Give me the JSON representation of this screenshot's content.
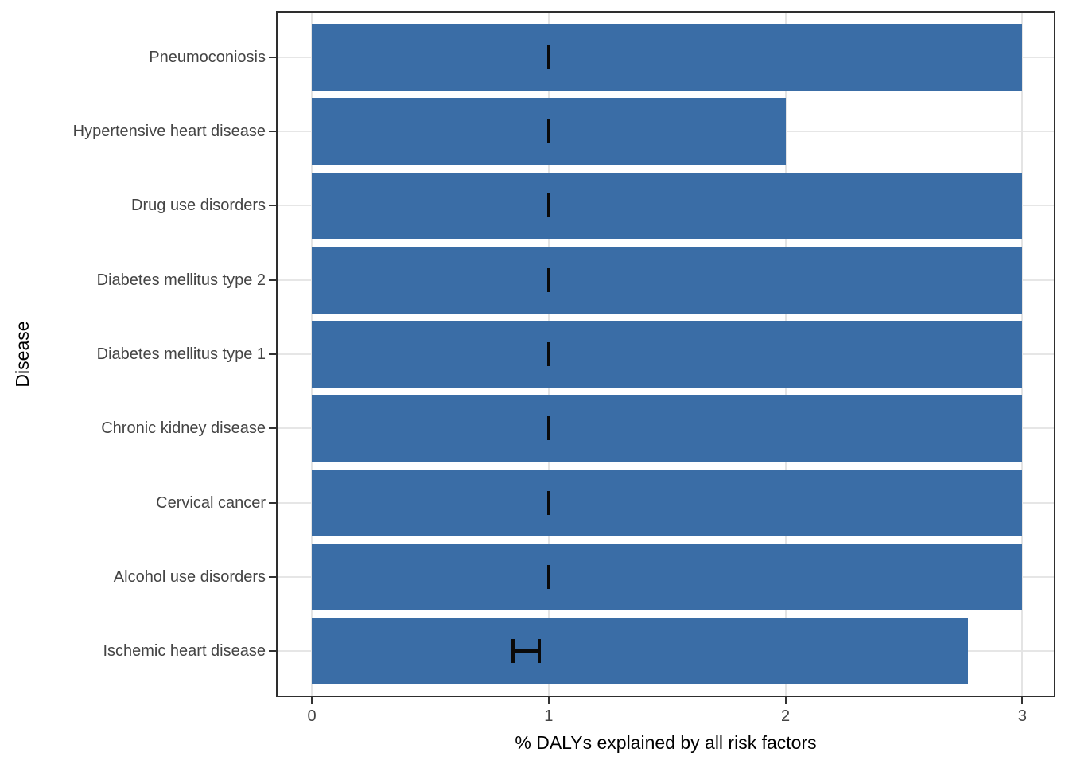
{
  "figure": {
    "background": "#FFFFFF"
  },
  "chart_data": {
    "type": "bar",
    "orientation": "horizontal",
    "title": "",
    "xlabel": "% DALYs explained by all risk factors",
    "ylabel": "Disease",
    "xlim": [
      0,
      3
    ],
    "x_major_ticks": [
      0,
      1,
      2,
      3
    ],
    "x_minor_gridlines": [
      0.5,
      1.5,
      2.5
    ],
    "grid": "major-x, minor-x, major-y; light gray on white",
    "legend": "none",
    "bar_color": "#3A6DA6",
    "errorbar_color": "#0a0a0a",
    "panel_border_color": "#2e2e2e",
    "categories": [
      "Pneumoconiosis",
      "Hypertensive heart disease",
      "Drug use disorders",
      "Diabetes mellitus type 2",
      "Diabetes mellitus type 1",
      "Chronic kidney disease",
      "Cervical cancer",
      "Alcohol use disorders",
      "Ischemic heart disease"
    ],
    "series": [
      {
        "name": "% DALYs explained by all risk factors (bar length)",
        "values": [
          3.0,
          2.0,
          3.0,
          3.0,
          3.0,
          3.0,
          3.0,
          3.0,
          2.77
        ]
      }
    ],
    "error_bars": [
      {
        "low": 1.0,
        "high": 1.0,
        "center": 1.0
      },
      {
        "low": 1.0,
        "high": 1.0,
        "center": 1.0
      },
      {
        "low": 1.0,
        "high": 1.0,
        "center": 1.0
      },
      {
        "low": 1.0,
        "high": 1.0,
        "center": 1.0
      },
      {
        "low": 1.0,
        "high": 1.0,
        "center": 1.0
      },
      {
        "low": 1.0,
        "high": 1.0,
        "center": 1.0
      },
      {
        "low": 1.0,
        "high": 1.0,
        "center": 1.0
      },
      {
        "low": 1.0,
        "high": 1.0,
        "center": 1.0
      },
      {
        "low": 0.85,
        "high": 0.96,
        "center": 0.9
      }
    ]
  }
}
